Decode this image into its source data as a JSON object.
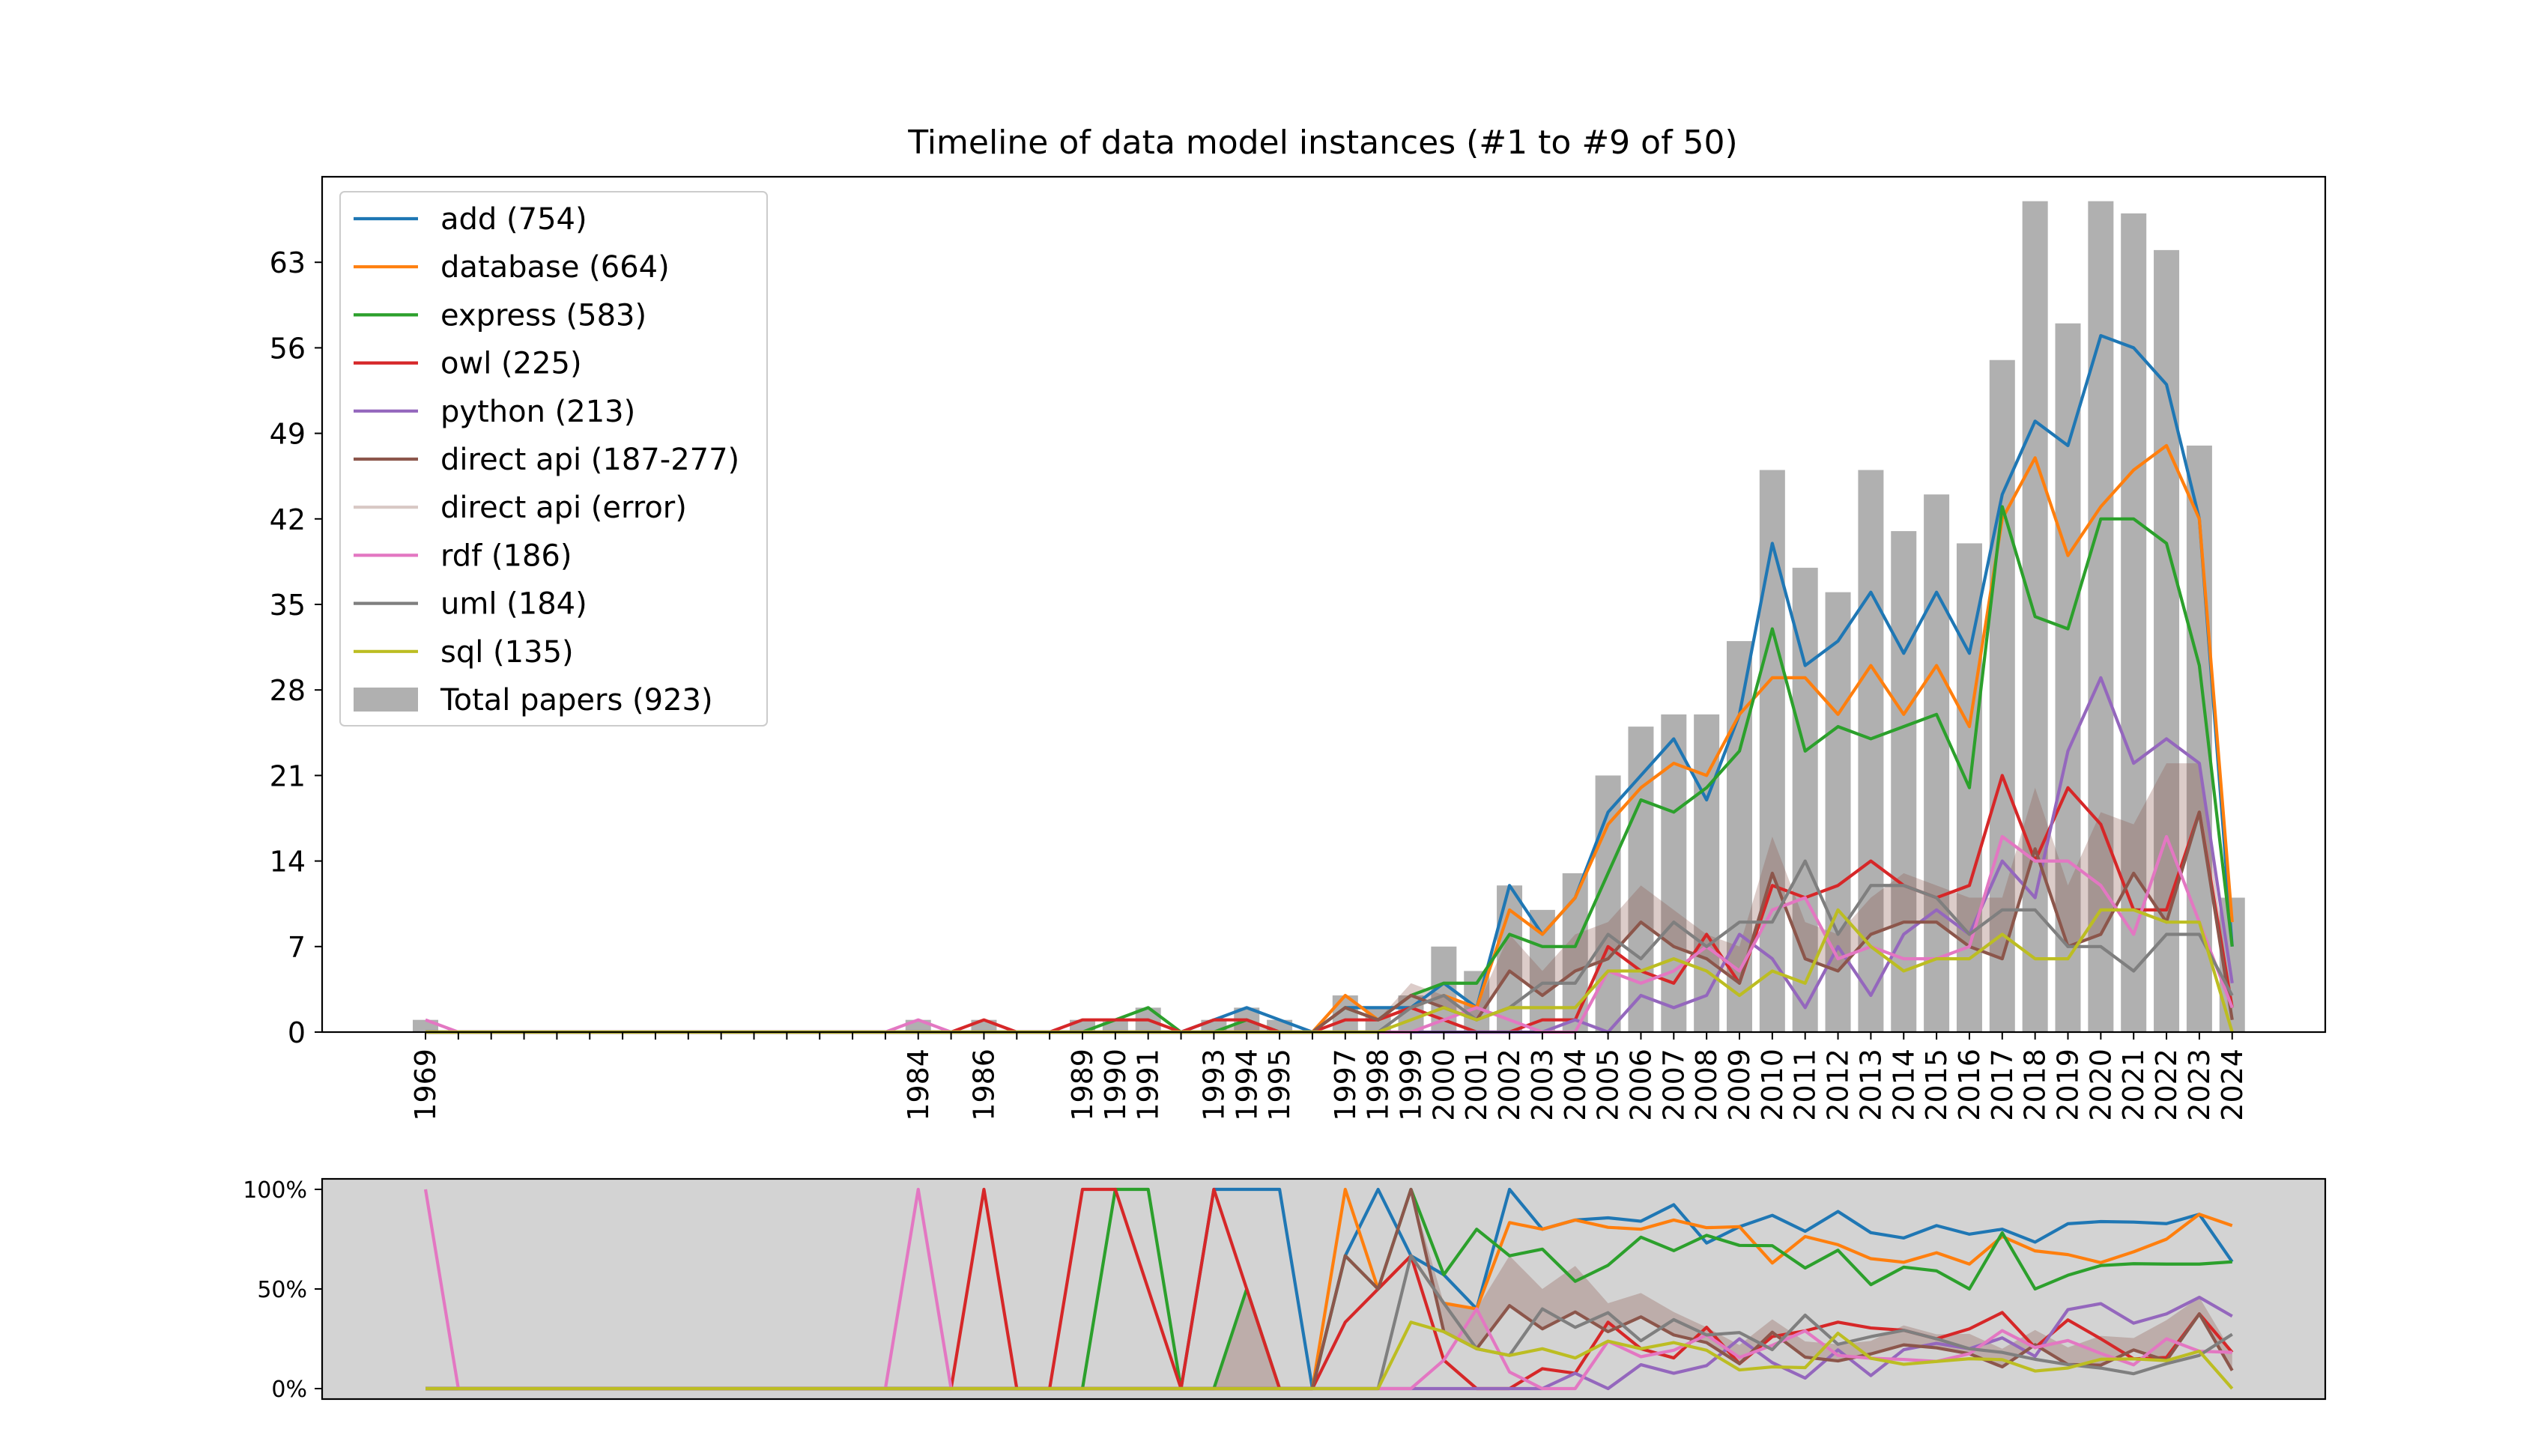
{
  "chart_data": [
    {
      "type": "line",
      "title": "Timeline of data model instances (#1 to #9 of 50)",
      "xlabel": "",
      "ylabel": "",
      "ylim": [
        0,
        70
      ],
      "yticks": [
        0,
        7,
        14,
        21,
        28,
        35,
        42,
        49,
        56,
        63
      ],
      "x_tick_labels": [
        "1969",
        "1984",
        "1986",
        "1989",
        "1990",
        "1991",
        "1993",
        "1994",
        "1995",
        "1997",
        "1998",
        "1999",
        "2000",
        "2001",
        "2002",
        "2003",
        "2004",
        "2005",
        "2006",
        "2007",
        "2008",
        "2009",
        "2010",
        "2011",
        "2012",
        "2013",
        "2014",
        "2015",
        "2016",
        "2017",
        "2018",
        "2019",
        "2020",
        "2021",
        "2022",
        "2023",
        "2024"
      ],
      "grid": false,
      "legend_position": "top-left",
      "x_years": [
        1969,
        1970,
        1971,
        1972,
        1973,
        1974,
        1975,
        1976,
        1977,
        1978,
        1979,
        1980,
        1981,
        1982,
        1983,
        1984,
        1985,
        1986,
        1987,
        1988,
        1989,
        1990,
        1991,
        1992,
        1993,
        1994,
        1995,
        1996,
        1997,
        1998,
        1999,
        2000,
        2001,
        2002,
        2003,
        2004,
        2005,
        2006,
        2007,
        2008,
        2009,
        2010,
        2011,
        2012,
        2013,
        2014,
        2015,
        2016,
        2017,
        2018,
        2019,
        2020,
        2021,
        2022,
        2023,
        2024
      ],
      "bars": {
        "name": "Total papers (923)",
        "color": "#b0b0b0",
        "values": [
          1,
          0,
          0,
          0,
          0,
          0,
          0,
          0,
          0,
          0,
          0,
          0,
          0,
          0,
          0,
          1,
          0,
          1,
          0,
          0,
          1,
          1,
          2,
          0,
          1,
          2,
          1,
          0,
          3,
          2,
          3,
          7,
          5,
          12,
          10,
          13,
          21,
          25,
          26,
          26,
          32,
          46,
          38,
          36,
          46,
          41,
          44,
          40,
          55,
          68,
          58,
          68,
          67,
          64,
          48,
          11
        ]
      },
      "series": [
        {
          "name": "add (754)",
          "color": "#1f77b4",
          "values": [
            0,
            0,
            0,
            0,
            0,
            0,
            0,
            0,
            0,
            0,
            0,
            0,
            0,
            0,
            0,
            0,
            0,
            0,
            0,
            0,
            0,
            0,
            0,
            0,
            1,
            2,
            1,
            0,
            2,
            2,
            2,
            4,
            2,
            12,
            8,
            11,
            18,
            21,
            24,
            19,
            26,
            40,
            30,
            32,
            36,
            31,
            36,
            31,
            44,
            50,
            48,
            57,
            56,
            53,
            42,
            7
          ]
        },
        {
          "name": "database (664)",
          "color": "#ff7f0e",
          "values": [
            0,
            0,
            0,
            0,
            0,
            0,
            0,
            0,
            0,
            0,
            0,
            0,
            0,
            0,
            0,
            0,
            0,
            0,
            0,
            0,
            0,
            0,
            0,
            0,
            0,
            0,
            0,
            0,
            3,
            1,
            2,
            3,
            2,
            10,
            8,
            11,
            17,
            20,
            22,
            21,
            26,
            29,
            29,
            26,
            30,
            26,
            30,
            25,
            42,
            47,
            39,
            43,
            46,
            48,
            42,
            9
          ]
        },
        {
          "name": "express (583)",
          "color": "#2ca02c",
          "values": [
            0,
            0,
            0,
            0,
            0,
            0,
            0,
            0,
            0,
            0,
            0,
            0,
            0,
            0,
            0,
            0,
            0,
            0,
            0,
            0,
            0,
            1,
            2,
            0,
            0,
            1,
            0,
            0,
            2,
            1,
            3,
            4,
            4,
            8,
            7,
            7,
            13,
            19,
            18,
            20,
            23,
            33,
            23,
            25,
            24,
            25,
            26,
            20,
            43,
            34,
            33,
            42,
            42,
            40,
            30,
            7
          ]
        },
        {
          "name": "owl (225)",
          "color": "#d62728",
          "values": [
            0,
            0,
            0,
            0,
            0,
            0,
            0,
            0,
            0,
            0,
            0,
            0,
            0,
            0,
            0,
            0,
            0,
            1,
            0,
            0,
            1,
            1,
            1,
            0,
            1,
            1,
            0,
            0,
            1,
            1,
            2,
            1,
            0,
            0,
            1,
            1,
            7,
            5,
            4,
            8,
            4,
            12,
            11,
            12,
            14,
            12,
            11,
            12,
            21,
            14,
            20,
            17,
            10,
            10,
            18,
            2
          ]
        },
        {
          "name": "python (213)",
          "color": "#9467bd",
          "values": [
            0,
            0,
            0,
            0,
            0,
            0,
            0,
            0,
            0,
            0,
            0,
            0,
            0,
            0,
            0,
            0,
            0,
            0,
            0,
            0,
            0,
            0,
            0,
            0,
            0,
            0,
            0,
            0,
            0,
            0,
            0,
            0,
            0,
            0,
            0,
            1,
            0,
            3,
            2,
            3,
            8,
            6,
            2,
            7,
            3,
            8,
            10,
            8,
            14,
            11,
            23,
            29,
            22,
            24,
            22,
            4
          ]
        },
        {
          "name": "direct api (187-277)",
          "color": "#8c564b",
          "values": [
            0,
            0,
            0,
            0,
            0,
            0,
            0,
            0,
            0,
            0,
            0,
            0,
            0,
            0,
            0,
            0,
            0,
            0,
            0,
            0,
            0,
            0,
            0,
            0,
            0,
            0,
            0,
            0,
            2,
            1,
            3,
            2,
            1,
            5,
            3,
            5,
            6,
            9,
            7,
            6,
            4,
            13,
            6,
            5,
            8,
            9,
            9,
            7,
            6,
            15,
            7,
            8,
            13,
            9,
            18,
            1
          ]
        },
        {
          "name": "direct api (error)",
          "color": "#d8c8c4",
          "values": [
            0,
            0,
            0,
            0,
            0,
            0,
            0,
            0,
            0,
            0,
            0,
            0,
            0,
            0,
            0,
            0,
            0,
            0,
            0,
            0,
            0,
            0,
            0,
            0,
            0,
            1,
            0,
            0,
            0,
            0,
            1,
            1,
            1,
            3,
            2,
            3,
            3,
            3,
            3,
            2,
            3,
            3,
            3,
            3,
            3,
            4,
            3,
            4,
            5,
            5,
            5,
            10,
            4,
            13,
            4,
            1
          ]
        },
        {
          "name": "rdf (186)",
          "color": "#e377c2",
          "values": [
            1,
            0,
            0,
            0,
            0,
            0,
            0,
            0,
            0,
            0,
            0,
            0,
            0,
            0,
            0,
            1,
            0,
            0,
            0,
            0,
            0,
            0,
            0,
            0,
            0,
            0,
            0,
            0,
            0,
            0,
            0,
            1,
            2,
            1,
            0,
            0,
            5,
            4,
            5,
            7,
            5,
            10,
            11,
            6,
            7,
            6,
            6,
            7,
            16,
            14,
            14,
            12,
            8,
            16,
            9,
            2
          ]
        },
        {
          "name": "uml (184)",
          "color": "#7f7f7f",
          "values": [
            0,
            0,
            0,
            0,
            0,
            0,
            0,
            0,
            0,
            0,
            0,
            0,
            0,
            0,
            0,
            0,
            0,
            0,
            0,
            0,
            0,
            0,
            0,
            0,
            0,
            0,
            0,
            0,
            0,
            0,
            2,
            3,
            1,
            2,
            4,
            4,
            8,
            6,
            9,
            7,
            9,
            9,
            14,
            8,
            12,
            12,
            11,
            8,
            10,
            10,
            7,
            7,
            5,
            8,
            8,
            3
          ]
        },
        {
          "name": "sql (135)",
          "color": "#bcbd22",
          "values": [
            0,
            0,
            0,
            0,
            0,
            0,
            0,
            0,
            0,
            0,
            0,
            0,
            0,
            0,
            0,
            0,
            0,
            0,
            0,
            0,
            0,
            0,
            0,
            0,
            0,
            0,
            0,
            0,
            0,
            0,
            1,
            2,
            1,
            2,
            2,
            2,
            5,
            5,
            6,
            5,
            3,
            5,
            4,
            10,
            7,
            5,
            6,
            6,
            8,
            6,
            6,
            10,
            10,
            9,
            9,
            0
          ]
        }
      ]
    },
    {
      "type": "line",
      "title": "",
      "xlabel": "",
      "ylabel": "",
      "ylim": [
        0,
        100
      ],
      "ytick_labels": [
        "0%",
        "50%",
        "100%"
      ],
      "ytick_values": [
        0,
        50,
        100
      ],
      "background": "#d3d3d3",
      "grid": false,
      "note_series": "percentage of total papers per year, same series and colors as the upper chart"
    }
  ]
}
